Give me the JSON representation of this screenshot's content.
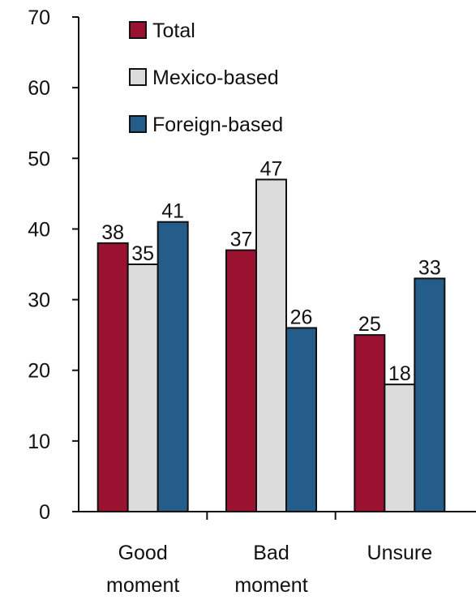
{
  "chart_data": {
    "type": "bar",
    "categories": [
      "Good moment",
      "Bad moment",
      "Unsure"
    ],
    "category_lines": [
      [
        "Good",
        "moment"
      ],
      [
        "Bad",
        "moment"
      ],
      [
        "Unsure"
      ]
    ],
    "series": [
      {
        "name": "Total",
        "color": "#9b1230",
        "values": [
          38,
          37,
          25
        ]
      },
      {
        "name": "Mexico-based",
        "color": "#dcdcdc",
        "values": [
          35,
          47,
          18
        ]
      },
      {
        "name": "Foreign-based",
        "color": "#245c8a",
        "values": [
          41,
          26,
          33
        ]
      }
    ],
    "ylim": [
      0,
      70
    ],
    "yticks": [
      0,
      10,
      20,
      30,
      40,
      50,
      60,
      70
    ],
    "legend_position": "top-left",
    "grid": false
  }
}
